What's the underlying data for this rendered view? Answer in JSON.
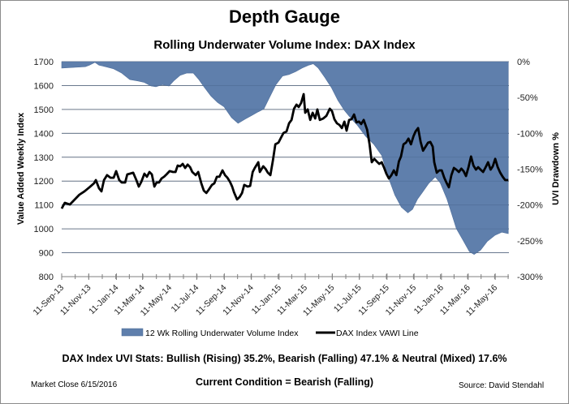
{
  "title": "Depth Gauge",
  "subtitle": "Rolling Underwater Volume Index: DAX Index",
  "stats_text": "DAX Index UVI Stats:  Bullish (Rising) 35.2%, Bearish (Falling) 47.1% & Neutral (Mixed) 17.6%",
  "condition_text": "Current Condition = Bearish (Falling)",
  "market_close": "Market Close 6/15/2016",
  "source": "Source: David Stendahl",
  "colors": {
    "area": "#5f7fac",
    "line": "#000000",
    "grid": "#8c8c8c"
  },
  "chart_data": {
    "type": "area+line",
    "title": "Depth Gauge",
    "subtitle": "Rolling Underwater Volume Index: DAX Index",
    "ylabel": "Value Added Weekly Index",
    "y2label": "UVI Drawdown %",
    "ylim": [
      800,
      1700
    ],
    "yticks": [
      "800",
      "900",
      "1000",
      "1100",
      "1200",
      "1300",
      "1400",
      "1500",
      "1600",
      "1700"
    ],
    "y2lim": [
      -300,
      0
    ],
    "y2ticks": [
      "-300%",
      "-250%",
      "-200%",
      "-150%",
      "-100%",
      "-50%",
      "0%"
    ],
    "x_unit": "weeks since 11-Sep-13",
    "xlim": [
      0,
      143.8
    ],
    "xticks": [
      {
        "w": 0,
        "label": "11-Sep-13"
      },
      {
        "w": 8.7,
        "label": "11-Nov-13"
      },
      {
        "w": 17.6,
        "label": "11-Jan-14"
      },
      {
        "w": 26,
        "label": "11-Mar-14"
      },
      {
        "w": 34.7,
        "label": "11-May-14"
      },
      {
        "w": 43.4,
        "label": "11-Jul-14"
      },
      {
        "w": 52.3,
        "label": "11-Sep-14"
      },
      {
        "w": 61,
        "label": "11-Nov-14"
      },
      {
        "w": 69.9,
        "label": "11-Jan-15"
      },
      {
        "w": 78.3,
        "label": "11-Mar-15"
      },
      {
        "w": 87,
        "label": "11-May-15"
      },
      {
        "w": 95.7,
        "label": "11-Jul-15"
      },
      {
        "w": 104.6,
        "label": "11-Sep-15"
      },
      {
        "w": 113.3,
        "label": "11-Nov-15"
      },
      {
        "w": 122.1,
        "label": "11-Jan-16"
      },
      {
        "w": 130.7,
        "label": "11-Mar-16"
      },
      {
        "w": 139.4,
        "label": "11-May-16"
      }
    ],
    "grid": true,
    "legend_position": "bottom",
    "series": [
      {
        "name": "12 Wk Rolling Underwater Volume Index",
        "type": "area",
        "axis": "right",
        "points": [
          [
            0,
            -9
          ],
          [
            3.7,
            -8
          ],
          [
            7.6,
            -7
          ],
          [
            8.9,
            -5
          ],
          [
            10.7,
            -1
          ],
          [
            12,
            -5
          ],
          [
            14.1,
            -7
          ],
          [
            16.7,
            -10
          ],
          [
            19.3,
            -16
          ],
          [
            21.9,
            -25
          ],
          [
            24.5,
            -27
          ],
          [
            26.6,
            -29
          ],
          [
            28.7,
            -34
          ],
          [
            30.3,
            -35
          ],
          [
            32.4,
            -32
          ],
          [
            34.5,
            -34
          ],
          [
            36,
            -27
          ],
          [
            38.1,
            -19
          ],
          [
            40.2,
            -16
          ],
          [
            42.3,
            -16
          ],
          [
            44.1,
            -25
          ],
          [
            45.9,
            -36
          ],
          [
            48,
            -48
          ],
          [
            50.1,
            -57
          ],
          [
            52.2,
            -63
          ],
          [
            54.6,
            -78
          ],
          [
            56.7,
            -86
          ],
          [
            59,
            -80
          ],
          [
            61.1,
            -75
          ],
          [
            63.2,
            -70
          ],
          [
            65,
            -66
          ],
          [
            66.8,
            -50
          ],
          [
            68.9,
            -32
          ],
          [
            71,
            -20
          ],
          [
            73.1,
            -18
          ],
          [
            75.2,
            -14
          ],
          [
            77.3,
            -9
          ],
          [
            79.4,
            -5
          ],
          [
            80.9,
            -3
          ],
          [
            82.5,
            -9
          ],
          [
            84.6,
            -22
          ],
          [
            86.7,
            -36
          ],
          [
            88.8,
            -54
          ],
          [
            90.9,
            -68
          ],
          [
            93,
            -79
          ],
          [
            95.1,
            -89
          ],
          [
            97.7,
            -104
          ],
          [
            100.3,
            -115
          ],
          [
            102.9,
            -131
          ],
          [
            105,
            -161
          ],
          [
            107.1,
            -186
          ],
          [
            109.2,
            -203
          ],
          [
            111.3,
            -211
          ],
          [
            112.8,
            -206
          ],
          [
            114.4,
            -192
          ],
          [
            115.9,
            -183
          ],
          [
            118,
            -170
          ],
          [
            120.1,
            -161
          ],
          [
            121.7,
            -169
          ],
          [
            123.8,
            -191
          ],
          [
            125.3,
            -211
          ],
          [
            126.9,
            -233
          ],
          [
            129,
            -249
          ],
          [
            131.1,
            -265
          ],
          [
            132.6,
            -269
          ],
          [
            134.7,
            -263
          ],
          [
            136.8,
            -251
          ],
          [
            139.4,
            -242
          ],
          [
            141.5,
            -238
          ],
          [
            143.6,
            -240
          ]
        ]
      },
      {
        "name": "DAX Index VAWI Line",
        "type": "line",
        "axis": "left",
        "points": [
          [
            0,
            1085
          ],
          [
            1,
            1109
          ],
          [
            2.6,
            1102
          ],
          [
            4.2,
            1123
          ],
          [
            5.7,
            1143
          ],
          [
            7.3,
            1157
          ],
          [
            8.9,
            1174
          ],
          [
            10.4,
            1191
          ],
          [
            11,
            1204
          ],
          [
            12,
            1170
          ],
          [
            12.8,
            1157
          ],
          [
            13.6,
            1204
          ],
          [
            14.6,
            1225
          ],
          [
            15.7,
            1214
          ],
          [
            16.7,
            1214
          ],
          [
            17.5,
            1242
          ],
          [
            18.5,
            1204
          ],
          [
            19.3,
            1194
          ],
          [
            20.4,
            1194
          ],
          [
            21.1,
            1228
          ],
          [
            21.9,
            1231
          ],
          [
            23,
            1235
          ],
          [
            24,
            1204
          ],
          [
            24.8,
            1177
          ],
          [
            25.6,
            1197
          ],
          [
            26.6,
            1231
          ],
          [
            27.4,
            1218
          ],
          [
            28.2,
            1238
          ],
          [
            29,
            1228
          ],
          [
            29.8,
            1177
          ],
          [
            30.5,
            1194
          ],
          [
            31.3,
            1194
          ],
          [
            32.1,
            1211
          ],
          [
            32.9,
            1218
          ],
          [
            33.7,
            1228
          ],
          [
            34.7,
            1242
          ],
          [
            35.8,
            1238
          ],
          [
            36.6,
            1238
          ],
          [
            37.3,
            1265
          ],
          [
            38.1,
            1262
          ],
          [
            38.9,
            1272
          ],
          [
            39.7,
            1255
          ],
          [
            40.5,
            1269
          ],
          [
            41.3,
            1258
          ],
          [
            42,
            1238
          ],
          [
            43.1,
            1225
          ],
          [
            43.9,
            1238
          ],
          [
            44.9,
            1191
          ],
          [
            45.7,
            1160
          ],
          [
            46.5,
            1150
          ],
          [
            47.3,
            1164
          ],
          [
            48.3,
            1184
          ],
          [
            49.1,
            1191
          ],
          [
            49.9,
            1218
          ],
          [
            50.7,
            1218
          ],
          [
            51.7,
            1245
          ],
          [
            52.5,
            1225
          ],
          [
            53.3,
            1214
          ],
          [
            54.1,
            1197
          ],
          [
            54.8,
            1177
          ],
          [
            55.4,
            1153
          ],
          [
            56.4,
            1123
          ],
          [
            57.2,
            1133
          ],
          [
            58,
            1150
          ],
          [
            58.7,
            1184
          ],
          [
            59.8,
            1177
          ],
          [
            60.6,
            1180
          ],
          [
            61.4,
            1238
          ],
          [
            62.1,
            1255
          ],
          [
            63.2,
            1279
          ],
          [
            63.7,
            1238
          ],
          [
            64.8,
            1262
          ],
          [
            65.5,
            1252
          ],
          [
            66.3,
            1235
          ],
          [
            67.1,
            1225
          ],
          [
            67.9,
            1286
          ],
          [
            68.7,
            1354
          ],
          [
            69.7,
            1361
          ],
          [
            70.5,
            1381
          ],
          [
            71.3,
            1401
          ],
          [
            72.3,
            1408
          ],
          [
            73.1,
            1442
          ],
          [
            73.9,
            1456
          ],
          [
            74.7,
            1503
          ],
          [
            75.5,
            1520
          ],
          [
            76.2,
            1510
          ],
          [
            77,
            1527
          ],
          [
            77.8,
            1564
          ],
          [
            78.3,
            1486
          ],
          [
            79.1,
            1500
          ],
          [
            79.9,
            1456
          ],
          [
            80.7,
            1486
          ],
          [
            81.5,
            1462
          ],
          [
            82.2,
            1500
          ],
          [
            83,
            1456
          ],
          [
            84.1,
            1462
          ],
          [
            85.1,
            1473
          ],
          [
            86.2,
            1503
          ],
          [
            86.9,
            1493
          ],
          [
            87.7,
            1459
          ],
          [
            88.5,
            1442
          ],
          [
            89.3,
            1435
          ],
          [
            90.1,
            1422
          ],
          [
            90.9,
            1449
          ],
          [
            91.6,
            1411
          ],
          [
            92.4,
            1456
          ],
          [
            93.2,
            1459
          ],
          [
            94,
            1479
          ],
          [
            94.8,
            1446
          ],
          [
            95.6,
            1449
          ],
          [
            96.3,
            1439
          ],
          [
            97.1,
            1456
          ],
          [
            98.2,
            1415
          ],
          [
            99,
            1354
          ],
          [
            99.7,
            1279
          ],
          [
            100.5,
            1293
          ],
          [
            101.3,
            1282
          ],
          [
            102.1,
            1272
          ],
          [
            102.9,
            1279
          ],
          [
            103.7,
            1255
          ],
          [
            104.4,
            1231
          ],
          [
            105.2,
            1211
          ],
          [
            106,
            1225
          ],
          [
            106.8,
            1245
          ],
          [
            107.6,
            1225
          ],
          [
            108.4,
            1282
          ],
          [
            109.1,
            1303
          ],
          [
            109.9,
            1354
          ],
          [
            110.7,
            1361
          ],
          [
            111.5,
            1378
          ],
          [
            112.3,
            1354
          ],
          [
            113.1,
            1388
          ],
          [
            113.8,
            1408
          ],
          [
            114.6,
            1422
          ],
          [
            115.4,
            1364
          ],
          [
            116.2,
            1327
          ],
          [
            117,
            1344
          ],
          [
            117.8,
            1361
          ],
          [
            118.5,
            1364
          ],
          [
            119.3,
            1344
          ],
          [
            119.8,
            1279
          ],
          [
            120.6,
            1235
          ],
          [
            121.4,
            1245
          ],
          [
            122.2,
            1245
          ],
          [
            123,
            1214
          ],
          [
            123.8,
            1191
          ],
          [
            124.5,
            1174
          ],
          [
            125.3,
            1225
          ],
          [
            126.1,
            1255
          ],
          [
            126.9,
            1248
          ],
          [
            127.7,
            1238
          ],
          [
            128.5,
            1252
          ],
          [
            129.2,
            1242
          ],
          [
            130,
            1221
          ],
          [
            130.8,
            1258
          ],
          [
            131.6,
            1303
          ],
          [
            132.4,
            1265
          ],
          [
            133.2,
            1248
          ],
          [
            133.9,
            1258
          ],
          [
            134.7,
            1248
          ],
          [
            135.5,
            1238
          ],
          [
            136.3,
            1258
          ],
          [
            137.1,
            1279
          ],
          [
            137.9,
            1248
          ],
          [
            138.6,
            1262
          ],
          [
            139.4,
            1293
          ],
          [
            140.2,
            1258
          ],
          [
            141,
            1235
          ],
          [
            141.8,
            1218
          ],
          [
            142.6,
            1204
          ],
          [
            143.6,
            1204
          ]
        ]
      }
    ]
  }
}
